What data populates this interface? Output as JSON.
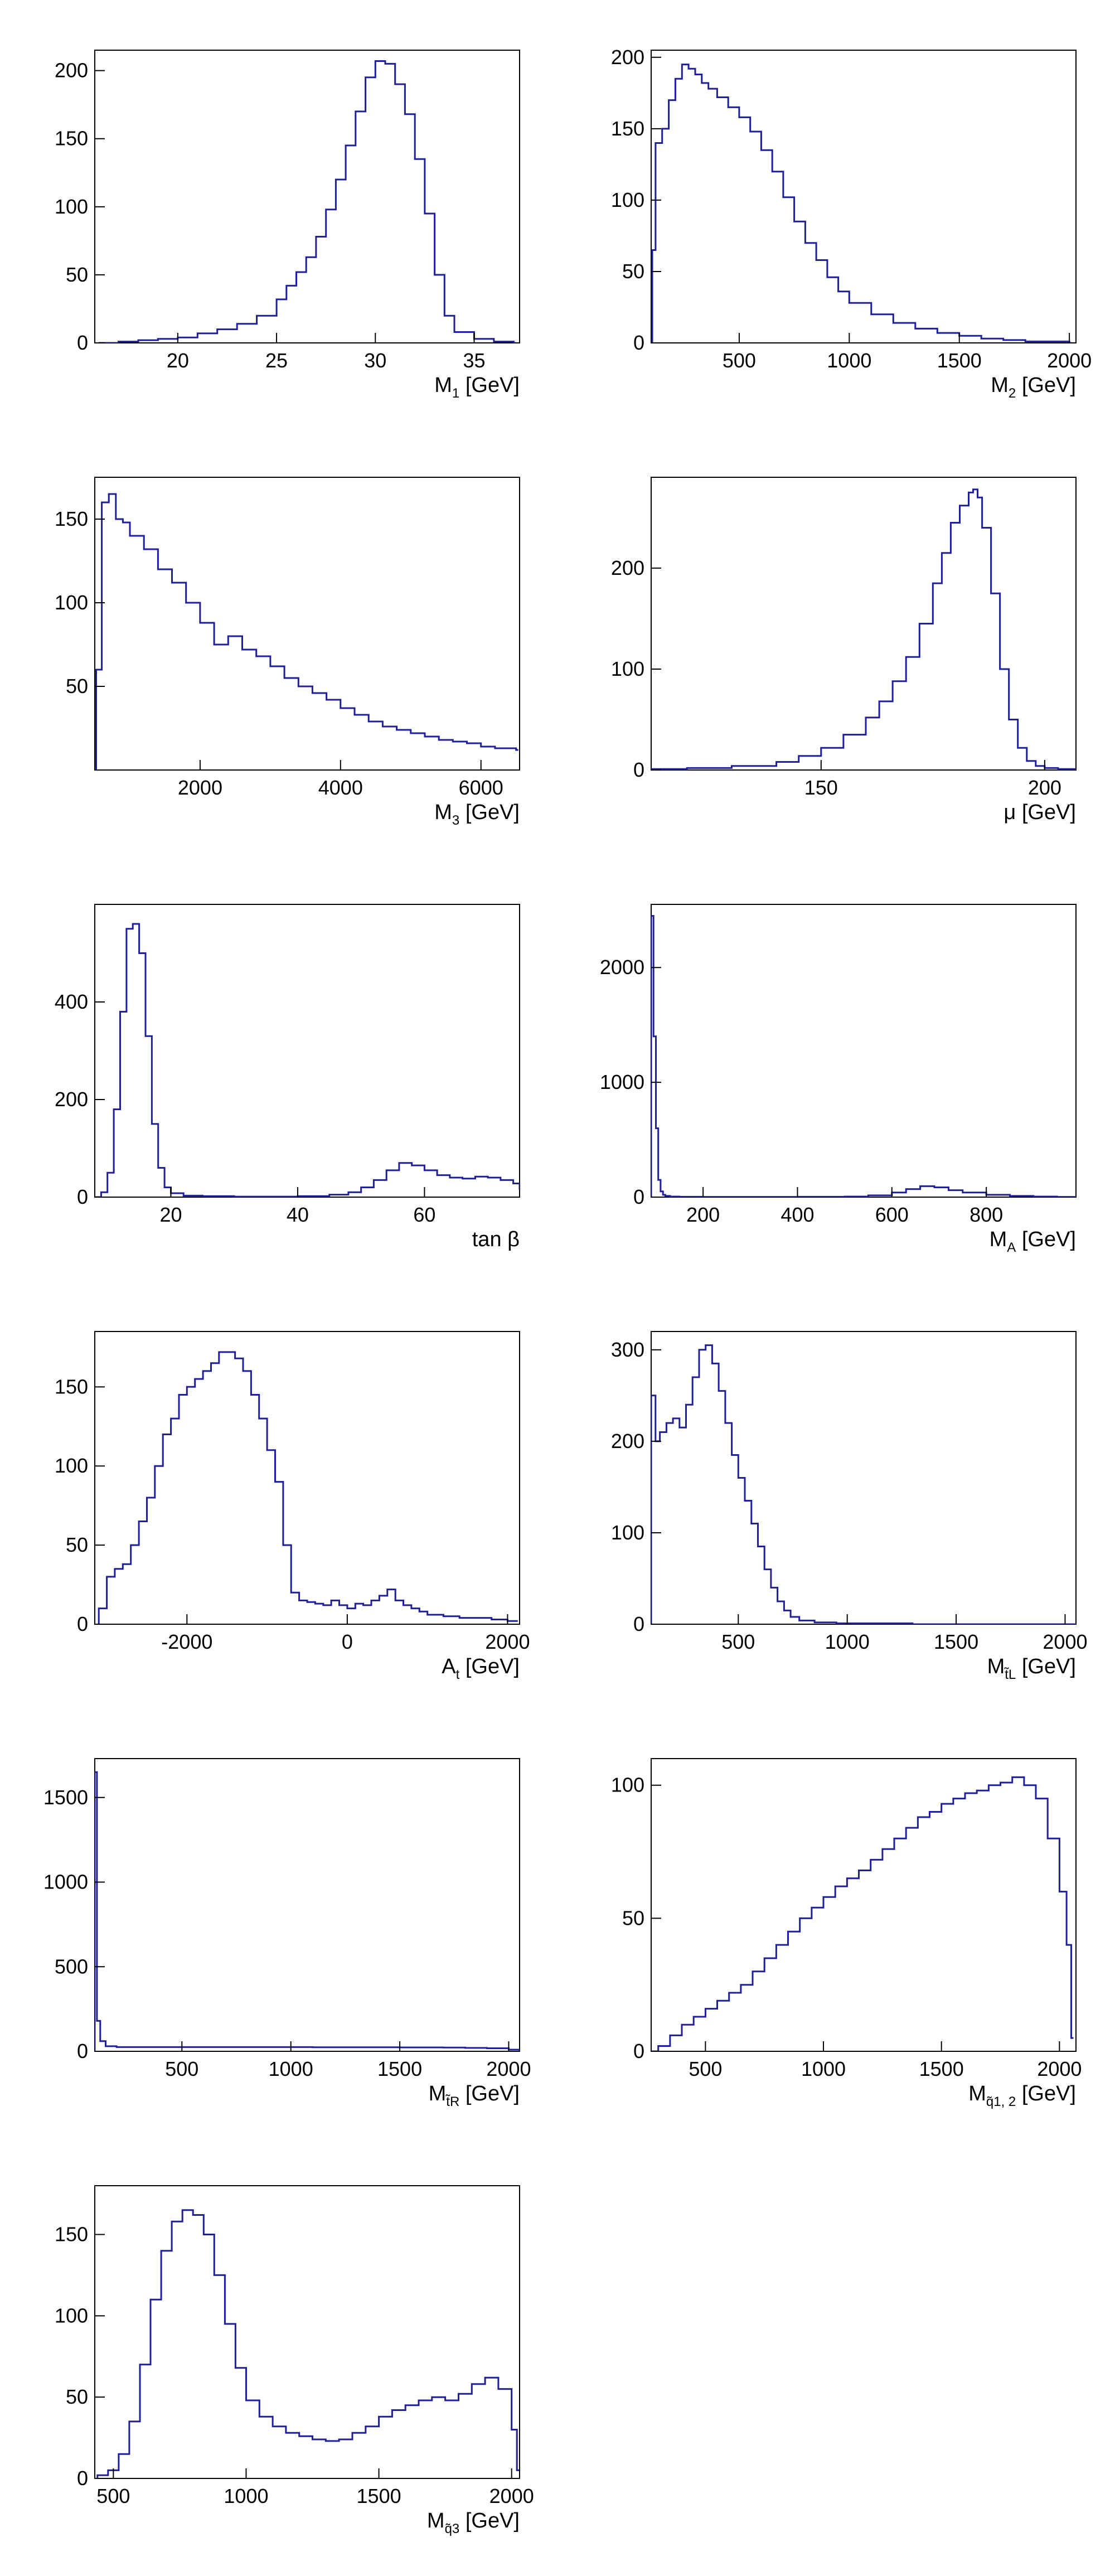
{
  "style": {
    "line_color": "#1f1f9a",
    "axis_color": "#000000"
  },
  "chart_data": [
    {
      "type": "histogram",
      "xlabel": {
        "base": "M",
        "sub": "1",
        "unit": "[GeV]"
      },
      "xlim": [
        15.8,
        37.3
      ],
      "ylim": [
        0,
        215
      ],
      "xticks": [
        20,
        25,
        30,
        35
      ],
      "yticks": [
        0,
        50,
        100,
        150,
        200
      ],
      "x": [
        16,
        17,
        18,
        19,
        20,
        21,
        22,
        23,
        24,
        25,
        25.5,
        26,
        26.5,
        27,
        27.5,
        28,
        28.5,
        29,
        29.5,
        30,
        30.5,
        31,
        31.5,
        32,
        32.5,
        33,
        33.5,
        34,
        35,
        36,
        37
      ],
      "y": [
        0,
        1,
        2,
        3,
        4,
        7,
        10,
        14,
        20,
        32,
        42,
        52,
        63,
        78,
        98,
        120,
        145,
        170,
        195,
        207,
        205,
        190,
        168,
        135,
        95,
        50,
        20,
        8,
        3,
        1,
        0
      ]
    },
    {
      "type": "histogram",
      "xlabel": {
        "base": "M",
        "sub": "2",
        "unit": "[GeV]"
      },
      "xlim": [
        100,
        2030
      ],
      "ylim": [
        0,
        205
      ],
      "xticks": [
        500,
        1000,
        1500,
        2000
      ],
      "yticks": [
        0,
        50,
        100,
        150,
        200
      ],
      "x": [
        105,
        120,
        150,
        180,
        210,
        240,
        270,
        300,
        330,
        360,
        400,
        450,
        500,
        550,
        600,
        650,
        700,
        750,
        800,
        850,
        900,
        950,
        1000,
        1100,
        1200,
        1300,
        1400,
        1500,
        1600,
        1700,
        1800,
        1900,
        2000
      ],
      "y": [
        65,
        140,
        150,
        170,
        185,
        195,
        192,
        188,
        182,
        178,
        172,
        165,
        158,
        148,
        135,
        120,
        102,
        85,
        70,
        58,
        46,
        36,
        28,
        20,
        14,
        10,
        7,
        5,
        3,
        2,
        1,
        1,
        0
      ]
    },
    {
      "type": "histogram",
      "xlabel": {
        "base": "M",
        "sub": "3",
        "unit": "[GeV]"
      },
      "xlim": [
        500,
        6550
      ],
      "ylim": [
        0,
        175
      ],
      "xticks": [
        2000,
        4000,
        6000
      ],
      "yticks": [
        50,
        100,
        150
      ],
      "x": [
        520,
        600,
        700,
        800,
        900,
        1000,
        1200,
        1400,
        1600,
        1800,
        2000,
        2200,
        2400,
        2600,
        2800,
        3000,
        3200,
        3400,
        3600,
        3800,
        4000,
        4200,
        4400,
        4600,
        4800,
        5000,
        5200,
        5400,
        5600,
        5800,
        6000,
        6200,
        6500
      ],
      "y": [
        60,
        160,
        165,
        150,
        148,
        140,
        132,
        120,
        112,
        100,
        88,
        75,
        80,
        72,
        68,
        62,
        55,
        50,
        46,
        42,
        37,
        33,
        29,
        26,
        24,
        22,
        20,
        18,
        17,
        16,
        14,
        13,
        12
      ]
    },
    {
      "type": "histogram",
      "xlabel": {
        "base": "μ",
        "sub": "",
        "unit": "[GeV]"
      },
      "xlim": [
        112,
        207
      ],
      "ylim": [
        0,
        290
      ],
      "xticks": [
        150,
        200
      ],
      "yticks": [
        0,
        100,
        200
      ],
      "x": [
        112,
        120,
        130,
        140,
        145,
        150,
        155,
        160,
        163,
        166,
        169,
        172,
        175,
        177,
        179,
        181,
        183,
        184,
        185,
        186,
        188,
        190,
        192,
        194,
        196,
        198,
        200,
        203,
        207
      ],
      "y": [
        1,
        2,
        4,
        8,
        14,
        22,
        35,
        52,
        68,
        88,
        112,
        145,
        185,
        215,
        245,
        262,
        275,
        278,
        270,
        240,
        175,
        100,
        50,
        22,
        9,
        4,
        2,
        1,
        0
      ]
    },
    {
      "type": "histogram",
      "xlabel": {
        "base": "tan β",
        "sub": "",
        "unit": ""
      },
      "xlim": [
        8,
        75
      ],
      "ylim": [
        0,
        600
      ],
      "xticks": [
        20,
        40,
        60
      ],
      "yticks": [
        0,
        200,
        400
      ],
      "x": [
        8,
        9,
        10,
        11,
        12,
        13,
        14,
        15,
        16,
        17,
        18,
        19,
        20,
        22,
        25,
        30,
        35,
        40,
        45,
        48,
        50,
        52,
        54,
        56,
        58,
        60,
        62,
        64,
        66,
        68,
        70,
        72,
        74,
        75
      ],
      "y": [
        0,
        10,
        50,
        180,
        380,
        550,
        560,
        500,
        330,
        150,
        60,
        20,
        8,
        3,
        2,
        1,
        1,
        2,
        5,
        10,
        20,
        35,
        55,
        70,
        65,
        55,
        45,
        40,
        38,
        42,
        40,
        35,
        28,
        15
      ]
    },
    {
      "type": "histogram",
      "xlabel": {
        "base": "M",
        "sub": "A",
        "unit": "[GeV]"
      },
      "xlim": [
        90,
        990
      ],
      "ylim": [
        0,
        2550
      ],
      "xticks": [
        200,
        400,
        600,
        800
      ],
      "yticks": [
        0,
        1000,
        2000
      ],
      "x": [
        90,
        95,
        100,
        105,
        110,
        115,
        120,
        130,
        150,
        200,
        300,
        400,
        500,
        550,
        600,
        630,
        660,
        690,
        720,
        750,
        800,
        850,
        900,
        950,
        990
      ],
      "y": [
        2450,
        1400,
        600,
        150,
        50,
        20,
        10,
        5,
        3,
        2,
        2,
        3,
        5,
        15,
        40,
        70,
        95,
        85,
        60,
        40,
        20,
        10,
        5,
        2,
        1
      ]
    },
    {
      "type": "histogram",
      "xlabel": {
        "base": "A",
        "sub": "t",
        "unit": "[GeV]"
      },
      "xlim": [
        -3150,
        2150
      ],
      "ylim": [
        0,
        185
      ],
      "xticks": [
        -2000,
        0,
        2000
      ],
      "yticks": [
        0,
        50,
        100,
        150
      ],
      "x": [
        -3100,
        -3000,
        -2900,
        -2800,
        -2700,
        -2600,
        -2500,
        -2400,
        -2300,
        -2200,
        -2100,
        -2000,
        -1900,
        -1800,
        -1700,
        -1600,
        -1500,
        -1400,
        -1300,
        -1200,
        -1100,
        -1000,
        -900,
        -800,
        -700,
        -600,
        -500,
        -400,
        -300,
        -200,
        -100,
        0,
        100,
        200,
        300,
        400,
        500,
        600,
        700,
        800,
        900,
        1000,
        1200,
        1400,
        1600,
        1800,
        2000,
        2100
      ],
      "y": [
        10,
        30,
        35,
        38,
        50,
        65,
        80,
        100,
        120,
        130,
        145,
        150,
        155,
        160,
        165,
        172,
        172,
        168,
        160,
        145,
        130,
        110,
        90,
        50,
        20,
        15,
        14,
        13,
        12,
        15,
        12,
        10,
        13,
        12,
        15,
        18,
        22,
        15,
        12,
        10,
        8,
        6,
        5,
        4,
        4,
        3,
        2,
        2
      ]
    },
    {
      "type": "histogram",
      "xlabel": {
        "base": "M",
        "sub": "t̃L",
        "unit": "[GeV]"
      },
      "xlim": [
        100,
        2050
      ],
      "ylim": [
        0,
        320
      ],
      "xticks": [
        500,
        1000,
        1500,
        2000
      ],
      "yticks": [
        0,
        100,
        200,
        300
      ],
      "x": [
        100,
        120,
        140,
        170,
        200,
        230,
        260,
        290,
        320,
        350,
        380,
        410,
        440,
        470,
        500,
        530,
        560,
        590,
        620,
        650,
        680,
        710,
        740,
        780,
        850,
        950,
        1100,
        1300,
        1500,
        1700,
        1900,
        2050
      ],
      "y": [
        250,
        200,
        210,
        220,
        225,
        215,
        240,
        270,
        300,
        305,
        285,
        255,
        220,
        185,
        160,
        135,
        110,
        85,
        60,
        40,
        25,
        15,
        8,
        4,
        2,
        1,
        1,
        0,
        0,
        0,
        0,
        0
      ]
    },
    {
      "type": "histogram",
      "xlabel": {
        "base": "M",
        "sub": "t̃R",
        "unit": "[GeV]"
      },
      "xlim": [
        100,
        2050
      ],
      "ylim": [
        0,
        1730
      ],
      "xticks": [
        500,
        1000,
        1500,
        2000
      ],
      "yticks": [
        0,
        500,
        1000,
        1500
      ],
      "x": [
        100,
        110,
        125,
        150,
        200,
        300,
        500,
        700,
        900,
        1100,
        1300,
        1500,
        1700,
        1800,
        1900,
        2000,
        2050
      ],
      "y": [
        1650,
        180,
        60,
        30,
        25,
        25,
        25,
        25,
        25,
        24,
        24,
        23,
        22,
        20,
        18,
        10,
        0
      ]
    },
    {
      "type": "histogram",
      "xlabel": {
        "base": "M",
        "sub": "q̃1, 2",
        "unit": "[GeV]"
      },
      "xlim": [
        270,
        2070
      ],
      "ylim": [
        0,
        110
      ],
      "xticks": [
        500,
        1000,
        1500,
        2000
      ],
      "yticks": [
        0,
        50,
        100
      ],
      "x": [
        270,
        300,
        350,
        400,
        450,
        500,
        550,
        600,
        650,
        700,
        750,
        800,
        850,
        900,
        950,
        1000,
        1050,
        1100,
        1150,
        1200,
        1250,
        1300,
        1350,
        1400,
        1450,
        1500,
        1550,
        1600,
        1650,
        1700,
        1750,
        1800,
        1850,
        1900,
        1950,
        2000,
        2030,
        2050
      ],
      "y": [
        0,
        2,
        6,
        10,
        13,
        16,
        19,
        22,
        25,
        30,
        35,
        40,
        45,
        50,
        54,
        58,
        62,
        65,
        68,
        72,
        76,
        80,
        84,
        88,
        90,
        93,
        95,
        97,
        98,
        100,
        101,
        103,
        100,
        95,
        80,
        60,
        40,
        5
      ]
    },
    {
      "type": "histogram",
      "xlabel": {
        "base": "M",
        "sub": "q̃3",
        "unit": "[GeV]"
      },
      "xlim": [
        430,
        2030
      ],
      "ylim": [
        0,
        180
      ],
      "xticks": [
        500,
        1000,
        1500,
        2000
      ],
      "yticks": [
        0,
        50,
        100,
        150
      ],
      "x": [
        440,
        480,
        520,
        560,
        600,
        640,
        680,
        720,
        760,
        800,
        840,
        880,
        920,
        960,
        1000,
        1050,
        1100,
        1150,
        1200,
        1250,
        1300,
        1350,
        1400,
        1450,
        1500,
        1550,
        1600,
        1650,
        1700,
        1750,
        1800,
        1850,
        1900,
        1950,
        2000,
        2020
      ],
      "y": [
        2,
        5,
        15,
        35,
        70,
        110,
        140,
        158,
        165,
        162,
        150,
        125,
        95,
        68,
        48,
        38,
        32,
        28,
        26,
        24,
        23,
        24,
        28,
        32,
        38,
        42,
        45,
        48,
        50,
        48,
        52,
        58,
        62,
        55,
        30,
        5
      ]
    }
  ]
}
